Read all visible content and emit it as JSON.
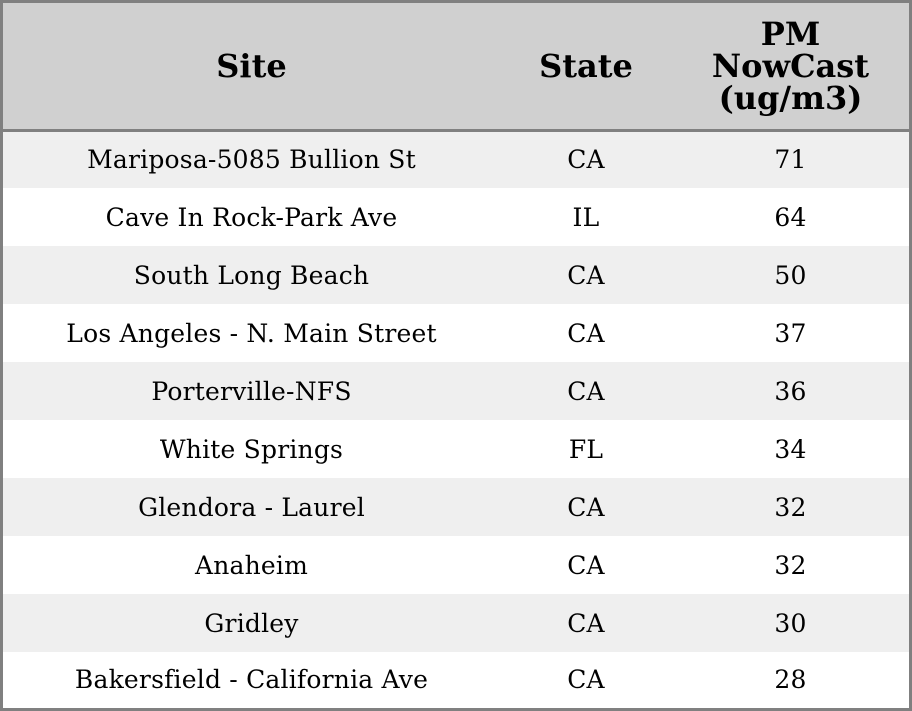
{
  "table": {
    "headers": {
      "site": "Site",
      "state": "State",
      "pm_line1": "PM",
      "pm_line2": "NowCast",
      "pm_line3": "(ug/m3)"
    },
    "rows": [
      {
        "site": "Mariposa-5085 Bullion St",
        "state": "CA",
        "pm": "71"
      },
      {
        "site": "Cave In Rock-Park Ave",
        "state": "IL",
        "pm": "64"
      },
      {
        "site": "South Long Beach",
        "state": "CA",
        "pm": "50"
      },
      {
        "site": "Los Angeles - N. Main Street",
        "state": "CA",
        "pm": "37"
      },
      {
        "site": "Porterville-NFS",
        "state": "CA",
        "pm": "36"
      },
      {
        "site": "White Springs",
        "state": "FL",
        "pm": "34"
      },
      {
        "site": "Glendora - Laurel",
        "state": "CA",
        "pm": "32"
      },
      {
        "site": "Anaheim",
        "state": "CA",
        "pm": "32"
      },
      {
        "site": "Gridley",
        "state": "CA",
        "pm": "30"
      },
      {
        "site": "Bakersfield - California Ave",
        "state": "CA",
        "pm": "28"
      }
    ]
  },
  "colors": {
    "header_bg": "#d0d0d0",
    "stripe_bg": "#efefef",
    "border": "#808080"
  }
}
